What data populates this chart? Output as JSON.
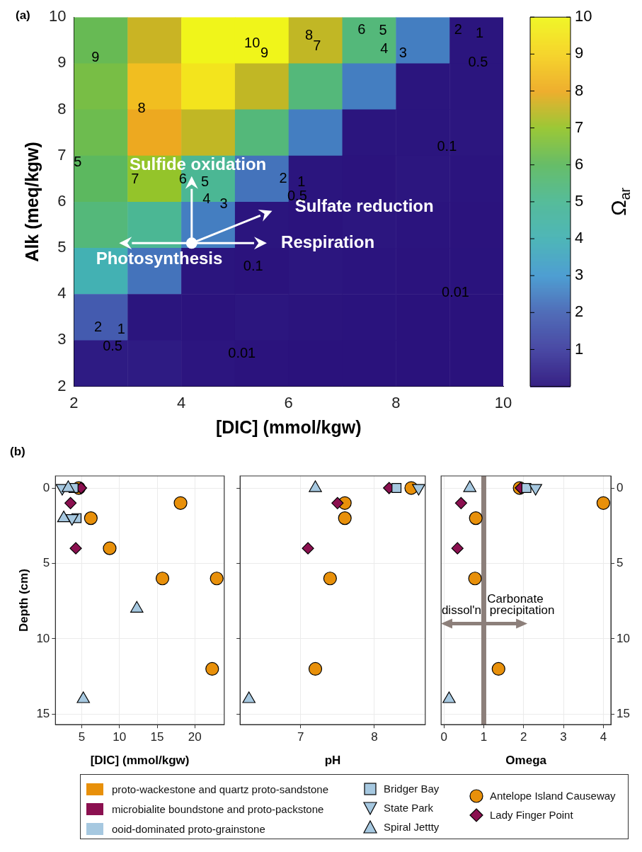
{
  "chart_data": [
    {
      "type": "heatmap",
      "title": "(a)",
      "xlabel": "[DIC] (mmol/kgw)",
      "ylabel": "Alk (meq/kgw)",
      "clabel": "Ω$_{ar}$",
      "x": [
        2.5,
        3.5,
        4.5,
        5.5,
        6.5,
        7.5,
        8.5,
        9.5
      ],
      "y": [
        9.5,
        8.5,
        7.5,
        6.5,
        5.5,
        4.5,
        3.5,
        2.5
      ],
      "cells": [
        [
          6.2,
          7.6,
          10,
          10,
          7.5,
          5.5,
          2.5,
          0.07
        ],
        [
          6.5,
          8.5,
          9.5,
          7.5,
          5.5,
          2.5,
          0.07,
          0.07
        ],
        [
          6.3,
          8,
          7.5,
          5.5,
          2.5,
          0.07,
          0.07,
          0.1
        ],
        [
          6,
          7,
          5,
          2.3,
          0.07,
          0.03,
          0.1,
          0.05
        ],
        [
          5.5,
          5,
          2.5,
          0.07,
          0.03,
          0.1,
          0.05,
          0.03
        ],
        [
          4,
          2.3,
          0.07,
          0.03,
          0.1,
          0.05,
          0.03,
          0.02
        ],
        [
          1.8,
          0.07,
          0.03,
          0.1,
          0.04,
          0.02,
          0.01,
          0.01
        ],
        [
          0.22,
          0.2,
          0.08,
          0.03,
          0.01,
          0.008,
          0.006,
          0.005
        ]
      ],
      "xlim": [
        2,
        10
      ],
      "ylim": [
        2,
        10
      ],
      "xticks": [
        2,
        4,
        6,
        8,
        10
      ],
      "yticks": [
        2,
        3,
        4,
        5,
        6,
        7,
        8,
        9,
        10
      ],
      "clim": [
        0,
        10
      ],
      "cticks": [
        1,
        2,
        3,
        4,
        5,
        6,
        7,
        8,
        9,
        10
      ],
      "annotations": [
        "Sulfide oxidation",
        "Sulfate reduction",
        "Respiration",
        "Photosynthesis",
        "10",
        "9",
        "8",
        "7",
        "6",
        "5",
        "4",
        "3",
        "2",
        "1",
        "0.5",
        "9",
        "8",
        "5",
        "7",
        "6",
        "5",
        "4",
        "3",
        "2",
        "1",
        "0.5",
        "0.1",
        "0.1",
        "0.01",
        "0.01",
        "2",
        "0.5",
        "1"
      ]
    },
    {
      "type": "scatter",
      "title": "(b)",
      "xlabel": "[DIC] (mmol/kgw)",
      "ylabel": "Depth (cm)",
      "xlim": [
        1.5,
        23.9
      ],
      "ylim": [
        15.7,
        -0.8
      ],
      "xticks": [
        5,
        10,
        15,
        20
      ],
      "yticks": [
        0,
        5,
        10,
        15
      ],
      "grid": true,
      "legend": "bottom",
      "annotations": [
        "proto-wackestone and quartz proto-sandstone",
        "microbialite boundstone and proto-packstone",
        "ooid-dominated proto-grainstone"
      ],
      "series": [
        {
          "name": "Antelope Island Causeway",
          "color": "#e8900a",
          "marker": "circle",
          "x": [
            4.6,
            18.1,
            6.2,
            8.7,
            15.7,
            22.9,
            22.3
          ],
          "values": [
            0,
            1,
            2,
            4,
            6,
            6,
            12
          ]
        },
        {
          "name": "Lady Finger Point",
          "color": "#8b1050",
          "marker": "diamond",
          "x": [
            4.9,
            3.5,
            4.2
          ],
          "values": [
            0,
            1,
            4
          ]
        },
        {
          "name": "Bridger Bay",
          "color": "#a6c8e0",
          "marker": "square",
          "x": [
            3.9,
            4.3
          ],
          "values": [
            0,
            2
          ]
        },
        {
          "name": "State Park",
          "color": "#a6c8e0",
          "marker": "triangle-down",
          "x": [
            2.4,
            3.7
          ],
          "values": [
            0,
            2
          ]
        },
        {
          "name": "Spiral Jettty",
          "color": "#a6c8e0",
          "marker": "triangle",
          "x": [
            3.2,
            2.6,
            12.3,
            5.2
          ],
          "values": [
            0,
            2,
            8,
            14
          ]
        }
      ]
    },
    {
      "type": "scatter",
      "xlabel": "pH",
      "xlim": [
        6.18,
        8.69
      ],
      "ylim": [
        15.7,
        -0.8
      ],
      "xticks": [
        7,
        8
      ],
      "yticks": [
        0,
        5,
        10,
        15
      ],
      "grid": true,
      "tick_labels": "x",
      "series": [
        {
          "color": "#e8900a",
          "marker": "circle",
          "x": [
            8.5,
            7.6,
            7.6,
            7.4,
            7.2
          ],
          "values": [
            0,
            1,
            2,
            6,
            12
          ]
        },
        {
          "color": "#8b1050",
          "marker": "diamond",
          "x": [
            8.2,
            7.5,
            7.1
          ],
          "values": [
            0,
            1,
            4
          ]
        },
        {
          "color": "#a6c8e0",
          "marker": "square",
          "x": [
            8.3
          ],
          "values": [
            0
          ]
        },
        {
          "color": "#a6c8e0",
          "marker": "triangle-down",
          "x": [
            8.6
          ],
          "values": [
            0
          ]
        },
        {
          "color": "#a6c8e0",
          "marker": "triangle",
          "x": [
            7.2,
            6.3
          ],
          "values": [
            0,
            14
          ]
        }
      ]
    },
    {
      "type": "scatter",
      "xlabel": "Omega",
      "xlim": [
        -0.07,
        4.19
      ],
      "y2lim": [
        15.7,
        -0.8
      ],
      "xticks": [
        0,
        1,
        2,
        3,
        4
      ],
      "y2ticks": [
        0,
        5,
        10,
        15
      ],
      "grid": true,
      "ref_lines": [
        {
          "axis": "x",
          "value": 1,
          "color": "#8c7f7a"
        }
      ],
      "annotations": [
        "Carbonate",
        "dissol'n",
        "precipitation"
      ],
      "series": [
        {
          "color": "#e8900a",
          "marker": "circle",
          "x": [
            1.9,
            4.0,
            0.8,
            0.78,
            1.37
          ],
          "values": [
            0,
            1,
            2,
            6,
            12
          ],
          "axis": "y2"
        },
        {
          "color": "#8b1050",
          "marker": "diamond",
          "x": [
            1.93,
            0.43,
            0.34
          ],
          "values": [
            0,
            1,
            4
          ],
          "axis": "y2"
        },
        {
          "color": "#a6c8e0",
          "marker": "square",
          "x": [
            2.07
          ],
          "values": [
            0
          ],
          "axis": "y2"
        },
        {
          "color": "#a6c8e0",
          "marker": "triangle-down",
          "x": [
            2.3
          ],
          "values": [
            0
          ],
          "axis": "y2"
        },
        {
          "color": "#a6c8e0",
          "marker": "triangle",
          "x": [
            0.65,
            0.13
          ],
          "values": [
            0,
            14
          ],
          "axis": "y2"
        }
      ]
    }
  ]
}
